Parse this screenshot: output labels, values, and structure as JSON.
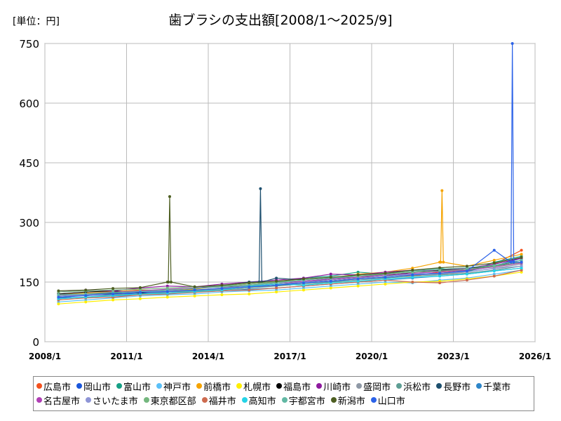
{
  "chart_data": {
    "type": "line",
    "title": "歯ブラシの支出額[2008/1～2025/9]",
    "unit_label": "[単位：円]",
    "xlabel": "",
    "ylabel": "",
    "ylim": [
      0,
      750
    ],
    "xlim": [
      2008,
      2026
    ],
    "yticks": [
      0,
      150,
      300,
      450,
      600,
      750
    ],
    "xticks": [
      {
        "v": 2008,
        "label": "2008/1"
      },
      {
        "v": 2011,
        "label": "2011/1"
      },
      {
        "v": 2014,
        "label": "2014/1"
      },
      {
        "v": 2017,
        "label": "2017/1"
      },
      {
        "v": 2020,
        "label": "2020/1"
      },
      {
        "v": 2023,
        "label": "2023/1"
      },
      {
        "v": 2026,
        "label": "2026/1"
      }
    ],
    "grid": true,
    "legend_position": "bottom",
    "x_note": "yearly approximate values, x = year start + 0.5",
    "series": [
      {
        "name": "広島市",
        "color": "#f4511e",
        "values": [
          115,
          120,
          118,
          125,
          130,
          128,
          135,
          140,
          145,
          150,
          155,
          160,
          170,
          165,
          175,
          180,
          195,
          230
        ]
      },
      {
        "name": "岡山市",
        "color": "#1a56db",
        "values": [
          110,
          118,
          122,
          120,
          128,
          130,
          132,
          138,
          142,
          150,
          158,
          165,
          168,
          170,
          172,
          178,
          190,
          210
        ]
      },
      {
        "name": "富山市",
        "color": "#16a085",
        "values": [
          120,
          115,
          125,
          130,
          126,
          135,
          140,
          145,
          150,
          160,
          165,
          175,
          170,
          180,
          185,
          175,
          200,
          215
        ]
      },
      {
        "name": "神戸市",
        "color": "#5bc0f8",
        "values": [
          100,
          105,
          110,
          115,
          118,
          120,
          125,
          128,
          130,
          135,
          140,
          145,
          150,
          148,
          155,
          160,
          170,
          180
        ]
      },
      {
        "name": "前橋市",
        "color": "#f5a300",
        "values": [
          118,
          122,
          126,
          130,
          128,
          132,
          140,
          145,
          150,
          155,
          160,
          170,
          175,
          185,
          200,
          190,
          205,
          220
        ]
      },
      {
        "name": "札幌市",
        "color": "#ffee00",
        "values": [
          95,
          100,
          105,
          108,
          112,
          115,
          118,
          120,
          125,
          130,
          135,
          140,
          145,
          150,
          152,
          158,
          165,
          175
        ]
      },
      {
        "name": "福島市",
        "color": "#000000",
        "values": [
          120,
          125,
          128,
          122,
          130,
          135,
          138,
          140,
          145,
          150,
          155,
          160,
          165,
          175,
          180,
          185,
          190,
          200
        ]
      },
      {
        "name": "川崎市",
        "color": "#8e1a9e",
        "values": [
          125,
          130,
          128,
          135,
          140,
          138,
          145,
          150,
          155,
          160,
          170,
          168,
          175,
          180,
          178,
          185,
          195,
          210
        ]
      },
      {
        "name": "盛岡市",
        "color": "#8f99a6",
        "values": [
          112,
          118,
          120,
          125,
          122,
          128,
          132,
          138,
          140,
          148,
          152,
          158,
          162,
          168,
          170,
          175,
          185,
          195
        ]
      },
      {
        "name": "浜松市",
        "color": "#5e9e94",
        "values": [
          108,
          112,
          118,
          120,
          125,
          128,
          130,
          135,
          140,
          145,
          150,
          155,
          160,
          165,
          168,
          172,
          180,
          190
        ]
      },
      {
        "name": "長野市",
        "color": "#1d4f6e",
        "values": [
          115,
          120,
          122,
          128,
          130,
          134,
          140,
          150,
          160,
          155,
          160,
          165,
          170,
          175,
          178,
          182,
          190,
          205
        ]
      },
      {
        "name": "千葉市",
        "color": "#2e86c9",
        "values": [
          110,
          112,
          115,
          118,
          122,
          125,
          128,
          132,
          135,
          140,
          145,
          150,
          155,
          160,
          165,
          170,
          178,
          185
        ]
      },
      {
        "name": "名古屋市",
        "color": "#b03fb5",
        "values": [
          118,
          120,
          125,
          128,
          132,
          135,
          138,
          142,
          148,
          152,
          158,
          162,
          168,
          172,
          176,
          180,
          188,
          198
        ]
      },
      {
        "name": "さいたま市",
        "color": "#8e95d6",
        "values": [
          115,
          118,
          120,
          125,
          128,
          130,
          135,
          140,
          145,
          150,
          155,
          160,
          165,
          170,
          172,
          176,
          184,
          190
        ]
      },
      {
        "name": "東京都区部",
        "color": "#74b77e",
        "values": [
          125,
          128,
          130,
          132,
          135,
          138,
          140,
          145,
          150,
          155,
          160,
          165,
          170,
          175,
          178,
          182,
          190,
          200
        ]
      },
      {
        "name": "福井市",
        "color": "#cd6b4f",
        "values": [
          105,
          110,
          112,
          118,
          120,
          124,
          128,
          130,
          135,
          140,
          145,
          150,
          155,
          150,
          148,
          155,
          165,
          180
        ]
      },
      {
        "name": "高知市",
        "color": "#25d3e6",
        "values": [
          108,
          112,
          116,
          120,
          122,
          126,
          130,
          140,
          145,
          142,
          148,
          152,
          158,
          162,
          165,
          170,
          178,
          185
        ]
      },
      {
        "name": "宇都宮市",
        "color": "#62b8a4",
        "values": [
          118,
          120,
          124,
          126,
          130,
          134,
          138,
          142,
          148,
          155,
          160,
          168,
          172,
          178,
          182,
          186,
          192,
          205
        ]
      },
      {
        "name": "新潟市",
        "color": "#4d5e21",
        "values": [
          128,
          130,
          134,
          136,
          150,
          138,
          142,
          148,
          152,
          158,
          162,
          168,
          172,
          180,
          186,
          190,
          198,
          212
        ]
      },
      {
        "name": "山口市",
        "color": "#2b62e8",
        "values": [
          112,
          116,
          120,
          124,
          126,
          130,
          134,
          138,
          142,
          148,
          152,
          158,
          162,
          168,
          172,
          178,
          230,
          200
        ]
      }
    ],
    "annotations": [
      {
        "series": "山口市",
        "x": "2025/3",
        "value": 750
      },
      {
        "series": "長野市",
        "x": "2015/12",
        "value": 385
      },
      {
        "series": "前橋市",
        "x": "2022/8",
        "value": 380
      },
      {
        "series": "新潟市",
        "x": "2012/8",
        "value": 365
      }
    ]
  }
}
